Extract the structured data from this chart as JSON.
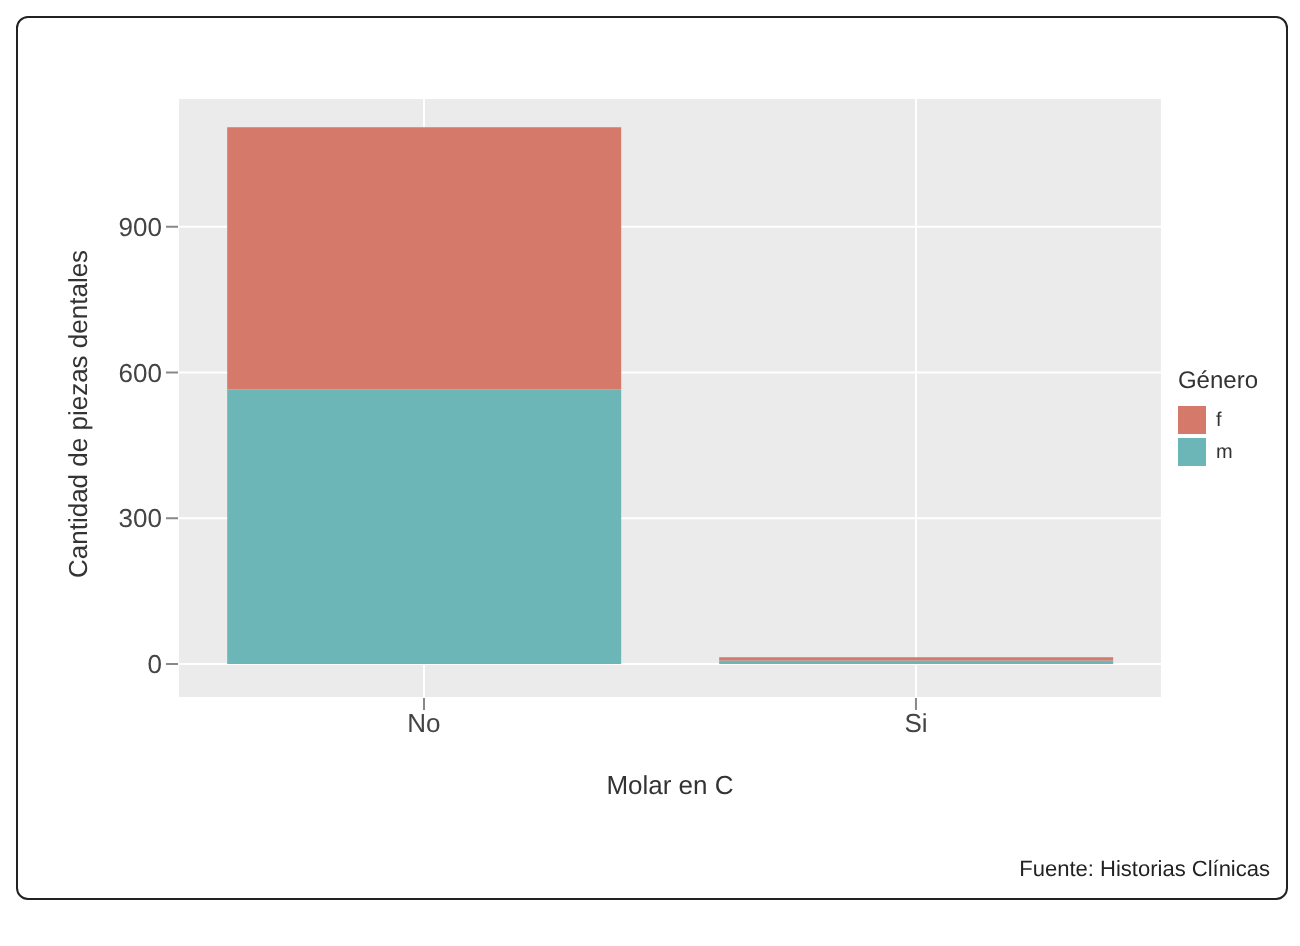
{
  "chart_data": {
    "type": "bar",
    "stacked": true,
    "xlabel": "Molar en C",
    "ylabel": "Cantidad de piezas dentales",
    "legend_title": "Género",
    "legend": "right",
    "grid": true,
    "categories": [
      "No",
      "Si"
    ],
    "series": [
      {
        "name": "m",
        "color": "#6db6b7",
        "values": [
          565,
          7
        ]
      },
      {
        "name": "f",
        "color": "#d5796a",
        "values": [
          540,
          7
        ]
      }
    ],
    "ylim": [
      -70,
      1165
    ],
    "yticks": [
      0,
      300,
      600,
      900
    ],
    "annotations": [
      "Fuente: Historias Clínicas"
    ]
  }
}
